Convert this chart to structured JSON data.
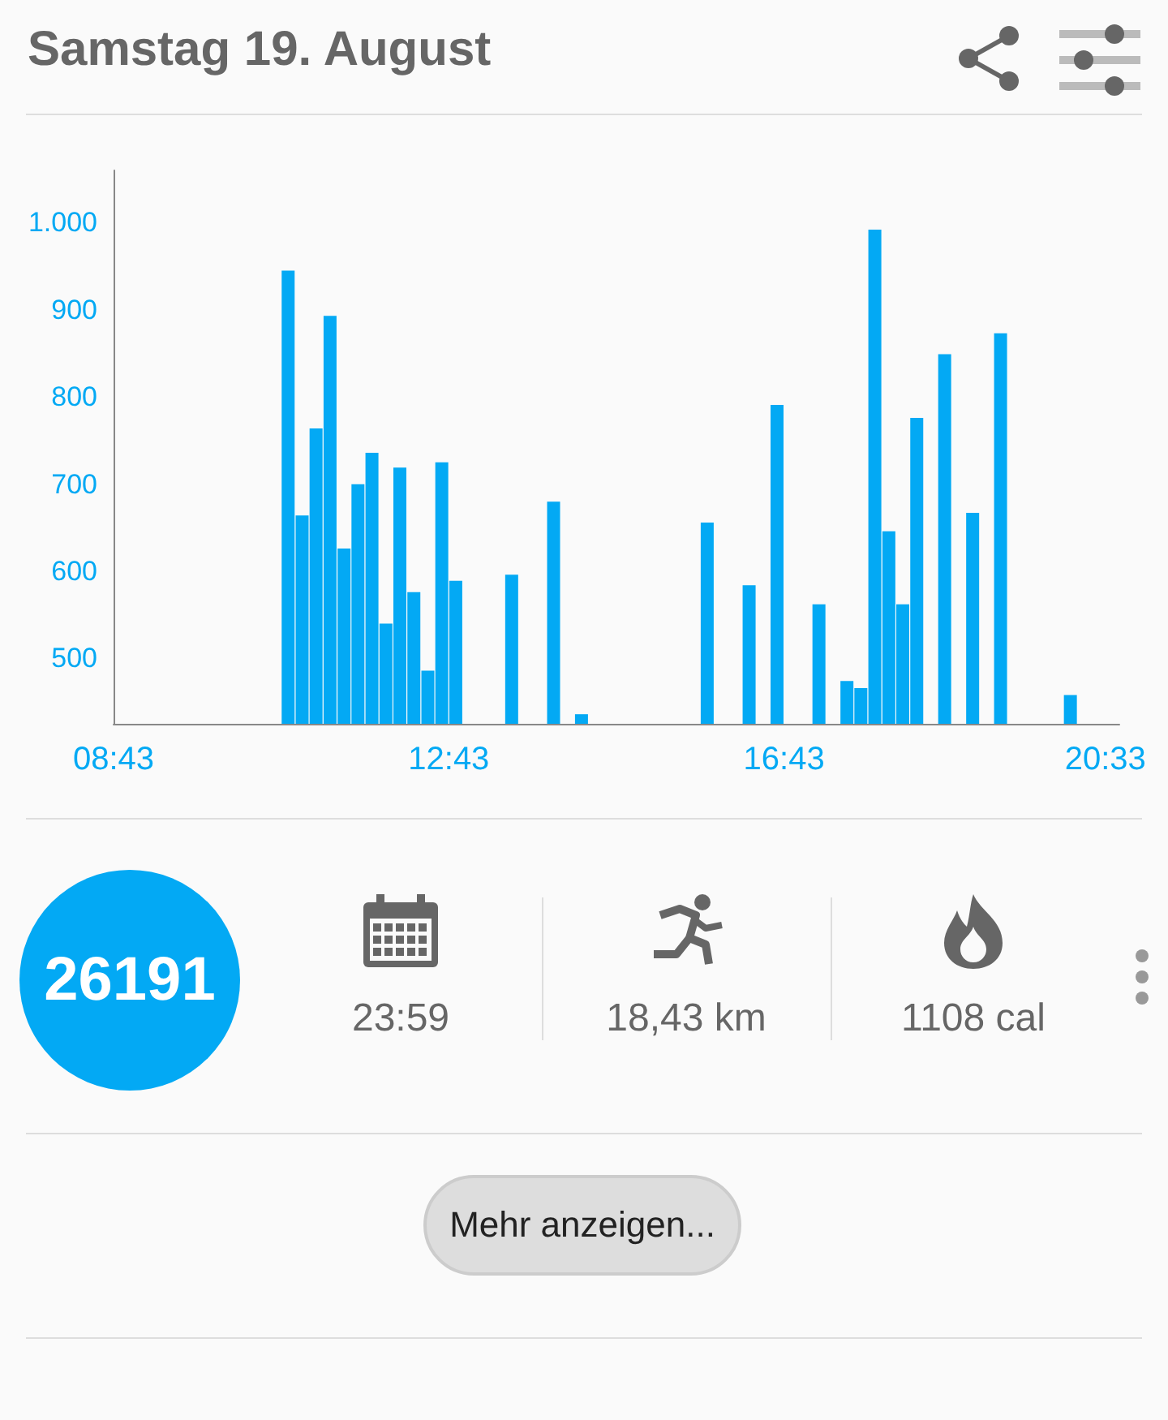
{
  "chart_data": {
    "type": "bar",
    "title": "Samstag 19. August",
    "x": [
      10.8,
      10.967,
      11.133,
      11.3,
      11.467,
      11.633,
      11.8,
      11.967,
      12.133,
      12.3,
      12.467,
      12.633,
      12.8,
      13.467,
      13.967,
      14.3,
      15.8,
      16.3,
      16.633,
      17.133,
      17.467,
      17.633,
      17.8,
      17.967,
      18.133,
      18.3,
      18.633,
      18.967,
      19.3,
      20.133
    ],
    "values": [
      945,
      664,
      764,
      893,
      626,
      700,
      736,
      540,
      719,
      576,
      486,
      725,
      589,
      596,
      680,
      436,
      656,
      584,
      791,
      562,
      474,
      466,
      992,
      646,
      562,
      776,
      849,
      667,
      873,
      458
    ],
    "color": "#03a9f4",
    "xlim": [
      8.717,
      20.717
    ],
    "xticks": [
      {
        "value": 8.717,
        "label": "08:43"
      },
      {
        "value": 12.717,
        "label": "12:43"
      },
      {
        "value": 16.717,
        "label": "16:43"
      },
      {
        "value": 20.55,
        "label": "20:33"
      }
    ],
    "ylim": [
      425,
      1060
    ],
    "yticks": [
      500,
      600,
      700,
      800,
      900,
      {
        "value": 1000,
        "label": "1.000"
      }
    ],
    "grid": false,
    "annotations": [
      "26191",
      "23:59",
      "18,43 km",
      "1108 cal",
      "Mehr anzeigen..."
    ]
  }
}
